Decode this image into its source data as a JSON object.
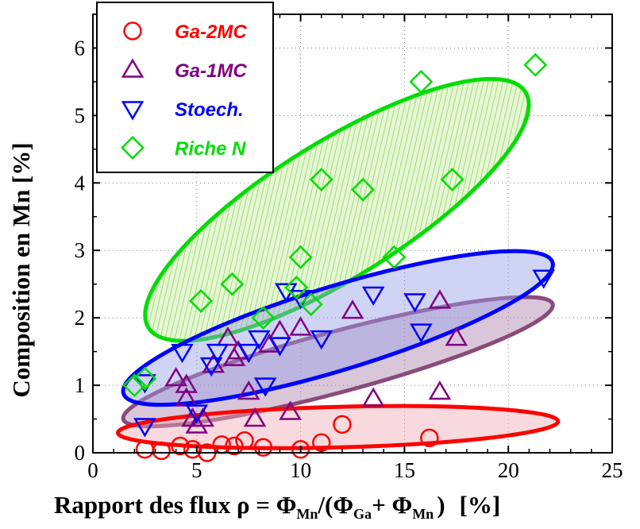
{
  "chart_data": {
    "type": "scatter",
    "title": "",
    "xlabel_main": "Rapport des flux  ρ = Φ",
    "xlabel_sub_mn": "Mn",
    "xlabel_mid": "/(Φ",
    "xlabel_sub_ga": "Ga",
    "xlabel_plus": "+ Φ",
    "xlabel_close": ")",
    "xlabel_unit": "[%]",
    "ylabel": "Composition  en Mn [%]",
    "xlim": [
      0,
      25
    ],
    "ylim": [
      0,
      6.5
    ],
    "xticks": [
      "0",
      "5",
      "10",
      "15",
      "20",
      "25"
    ],
    "yticks": [
      "0",
      "1",
      "2",
      "3",
      "4",
      "5",
      "6"
    ],
    "grid": "dotted",
    "legend_position": "top-left",
    "series": [
      {
        "name": "Ga-2MC",
        "marker": "circle",
        "color": "#ff0000",
        "points": [
          [
            2.5,
            0.05
          ],
          [
            3.3,
            0.03
          ],
          [
            4.2,
            0.1
          ],
          [
            4.8,
            0.05
          ],
          [
            5.5,
            0.0
          ],
          [
            6.2,
            0.12
          ],
          [
            6.8,
            0.1
          ],
          [
            7.3,
            0.18
          ],
          [
            8.2,
            0.08
          ],
          [
            10,
            0.05
          ],
          [
            11,
            0.15
          ],
          [
            12,
            0.42
          ],
          [
            16.2,
            0.22
          ]
        ],
        "ellipse": {
          "cx": 11.8,
          "cy": 0.38,
          "rx": 10.6,
          "ry": 0.3,
          "angle_deg": -1.5
        }
      },
      {
        "name": "Ga-1MC",
        "marker": "triangle-up",
        "color": "#800080",
        "points": [
          [
            4,
            1.1
          ],
          [
            4.5,
            1.0
          ],
          [
            4.8,
            0.5
          ],
          [
            5.0,
            0.4
          ],
          [
            5.3,
            0.5
          ],
          [
            5.8,
            1.3
          ],
          [
            6.5,
            1.7
          ],
          [
            7.0,
            1.5
          ],
          [
            7.5,
            0.9
          ],
          [
            7.8,
            0.5
          ],
          [
            8.5,
            1.6
          ],
          [
            9.0,
            1.8
          ],
          [
            9.5,
            0.6
          ],
          [
            10,
            1.85
          ],
          [
            12.5,
            2.1
          ],
          [
            13.5,
            0.8
          ],
          [
            16.7,
            2.25
          ],
          [
            16.7,
            0.9
          ],
          [
            17.5,
            1.7
          ],
          [
            6.8,
            1.4
          ],
          [
            4.5,
            0.8
          ]
        ],
        "ellipse": {
          "cx": 11.8,
          "cy": 1.35,
          "rx": 10.7,
          "ry": 0.45,
          "angle_deg": -15
        }
      },
      {
        "name": "Stoech.",
        "marker": "triangle-down",
        "color": "#0000ff",
        "points": [
          [
            2.5,
            1.05
          ],
          [
            2.5,
            0.4
          ],
          [
            4.3,
            1.5
          ],
          [
            5.0,
            0.6
          ],
          [
            5.7,
            1.3
          ],
          [
            6.0,
            1.5
          ],
          [
            7.5,
            1.5
          ],
          [
            8.0,
            1.7
          ],
          [
            8.3,
            1.0
          ],
          [
            9.0,
            1.6
          ],
          [
            9.3,
            2.4
          ],
          [
            10.0,
            2.3
          ],
          [
            11.0,
            1.7
          ],
          [
            13.5,
            2.35
          ],
          [
            15.5,
            2.25
          ],
          [
            15.8,
            1.8
          ],
          [
            21.7,
            2.6
          ]
        ],
        "ellipse": {
          "cx": 11.8,
          "cy": 1.85,
          "rx": 10.8,
          "ry": 0.62,
          "angle_deg": -17
        }
      },
      {
        "name": "Riche N",
        "marker": "diamond",
        "color": "#00dd00",
        "points": [
          [
            2.0,
            1.0
          ],
          [
            2.5,
            1.1
          ],
          [
            5.2,
            2.25
          ],
          [
            6.7,
            2.5
          ],
          [
            8.2,
            2.0
          ],
          [
            9.8,
            2.45
          ],
          [
            10.0,
            2.9
          ],
          [
            10.5,
            2.2
          ],
          [
            11.0,
            4.05
          ],
          [
            13.0,
            3.9
          ],
          [
            14.5,
            2.9
          ],
          [
            15.8,
            5.5
          ],
          [
            17.3,
            4.05
          ],
          [
            21.3,
            5.75
          ]
        ],
        "ellipse": {
          "cx": 11.75,
          "cy": 3.6,
          "rx": 10.7,
          "ry": 1.0,
          "angle_deg": -32
        }
      }
    ]
  }
}
